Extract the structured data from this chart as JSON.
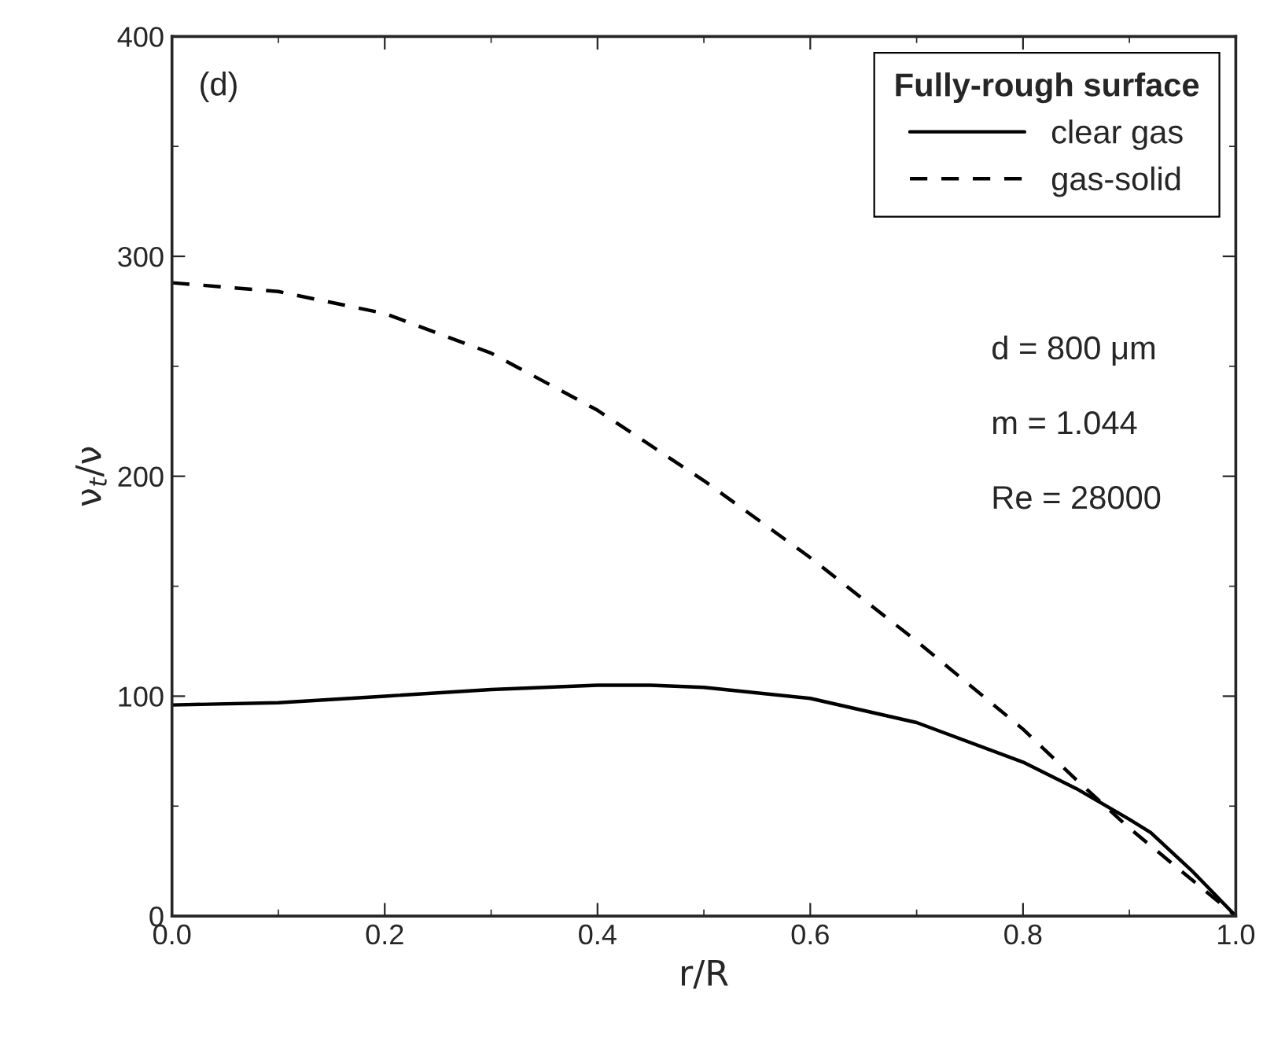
{
  "chart_data": {
    "type": "line",
    "xlabel": "r/R",
    "ylabel": "ν$_{t}$/ν",
    "legend_title": "Fully-rough surface",
    "legend": "top right",
    "xlim": [
      0,
      1
    ],
    "xticks": [
      {
        "value": 0,
        "label": "0.0"
      },
      0.2,
      0.4,
      0.6,
      0.8,
      {
        "value": 1,
        "label": "1.0"
      }
    ],
    "ylim": [
      0,
      400
    ],
    "yticks": [
      0,
      100,
      200,
      300,
      400
    ],
    "grid": false,
    "marker": "none",
    "annotations": [
      "(d)",
      "d = 800 μm",
      "m = 1.044",
      "Re = 28000"
    ],
    "series": [
      {
        "name": "clear gas",
        "color": "#000000",
        "line_style": "solid",
        "x": [
          0,
          0.1,
          0.2,
          0.3,
          0.4,
          0.45,
          0.5,
          0.6,
          0.7,
          0.8,
          0.85,
          0.9,
          0.92,
          0.96,
          1.0
        ],
        "values": [
          96,
          97,
          100,
          103,
          105,
          105,
          104,
          99,
          88,
          70,
          58,
          44,
          38,
          20,
          0
        ]
      },
      {
        "name": "gas-solid",
        "color": "#000000",
        "line_style": "dashed",
        "x": [
          0,
          0.1,
          0.2,
          0.3,
          0.4,
          0.5,
          0.6,
          0.7,
          0.8,
          0.85,
          0.9,
          0.95,
          1.0
        ],
        "values": [
          288,
          284,
          274,
          256,
          230,
          198,
          163,
          125,
          85,
          62,
          40,
          20,
          0
        ]
      }
    ]
  }
}
